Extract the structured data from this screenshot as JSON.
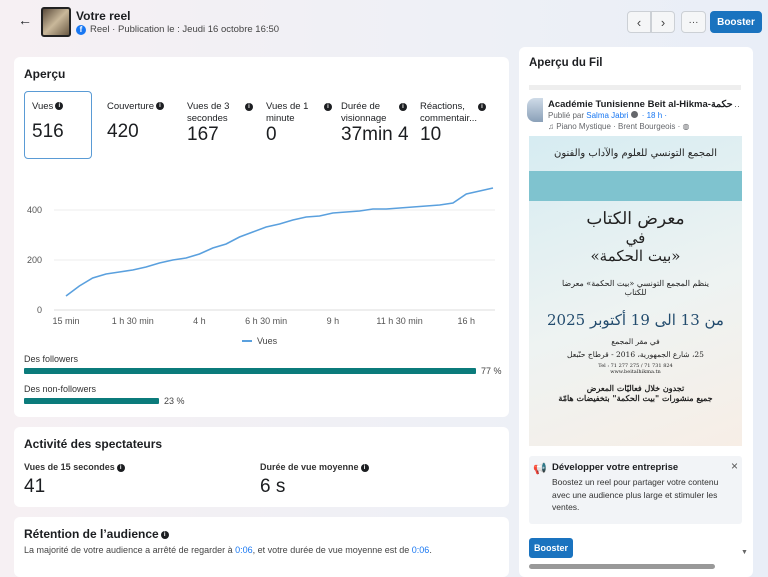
{
  "header": {
    "title": "Votre reel",
    "subtitle": "Reel · Publication le : Jeudi 16 octobre 16:50",
    "booster": "Booster",
    "more": "···"
  },
  "apercu": {
    "title": "Aperçu",
    "metrics": [
      {
        "label": "Vues",
        "value": "516"
      },
      {
        "label": "Couverture",
        "value": "420"
      },
      {
        "label": "Vues de 3 secondes",
        "value": "167"
      },
      {
        "label": "Vues de 1 minute",
        "value": "0"
      },
      {
        "label": "Durée de visionnage",
        "value": "37min 4"
      },
      {
        "label": "Réactions, commentair...",
        "value": "10"
      }
    ],
    "followers_label": "Des followers",
    "followers_pct": 77,
    "followers_text": "77 %",
    "nonfollowers_label": "Des non-followers",
    "nonfollowers_pct": 23,
    "nonfollowers_text": "23 %"
  },
  "chart_data": {
    "type": "line",
    "x_tick_labels": [
      "15 min",
      "1 h 30 min",
      "4 h",
      "6 h 30 min",
      "9 h",
      "11 h 30 min",
      "16 h"
    ],
    "y_ticks": [
      0,
      200,
      400
    ],
    "ylim": [
      0,
      500
    ],
    "grid": true,
    "legend_placement": "bottom",
    "series": [
      {
        "name": "Vues",
        "color": "#5aa0de",
        "values": [
          56,
          96,
          128,
          144,
          152,
          160,
          172,
          188,
          200,
          208,
          224,
          248,
          264,
          292,
          312,
          332,
          344,
          360,
          372,
          376,
          388,
          392,
          396,
          404,
          404,
          408,
          412,
          416,
          420,
          428,
          464,
          476,
          488
        ]
      }
    ]
  },
  "activite": {
    "title": "Activité des spectateurs",
    "m1_label": "Vues de 15 secondes",
    "m1_value": "41",
    "m2_label": "Durée de vue moyenne",
    "m2_value": "6 s"
  },
  "retention": {
    "title": "Rétention de l’audience",
    "text_a": "La majorité de votre audience a arrêté de regarder à ",
    "time1": "0:06",
    "text_b": ", et votre durée de vue moyenne est de ",
    "time2": "0:06",
    "text_c": "."
  },
  "fil": {
    "title": "Aperçu du Fil",
    "page_name": "Académie Tunisienne Beit al-Hikma-حكمة...",
    "published_by": "Publié par ",
    "author": "Salma Jabri",
    "time": " · 18 h ·",
    "music": "♫ Piano Mystique · Brent Bourgeois ·",
    "poster": {
      "header": "المجمع التونسي للعلوم والآداب والفنون",
      "t1": "معرض الكتاب",
      "t2": "في",
      "t3": "«بيت الحكمة»",
      "t4": "ينظم المجمع التونسي «بيت الحكمة» معرضا للكتاب",
      "t5": "من 13 الى 19 أكتوبر 2025",
      "t6": "في مقر المجمع",
      "t7": "25، شارع الجمهورية، 2016 - قرطاج حنّبعل",
      "t8": "Tel : 71 277 275 / 71 731 824",
      "t9": "www.beitalhikma.tn",
      "t10": "تجدون خلال فعاليّات المعرض",
      "t11": "جميع منشورات \"بيت الحكمة\" بتخفيضات هامّة"
    },
    "promo_title": "Développer votre entreprise",
    "promo_text": "Boostez un reel pour partager votre contenu avec une audience plus large et stimuler les ventes.",
    "booster": "Booster"
  }
}
